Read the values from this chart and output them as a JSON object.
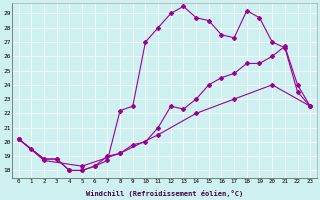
{
  "xlabel": "Windchill (Refroidissement éolien,°C)",
  "bg_color": "#cff0f0",
  "line_color": "#990099",
  "xlim": [
    -0.5,
    23.5
  ],
  "ylim": [
    17.5,
    29.7
  ],
  "yticks": [
    18,
    19,
    20,
    21,
    22,
    23,
    24,
    25,
    26,
    27,
    28,
    29
  ],
  "xticks": [
    0,
    1,
    2,
    3,
    4,
    5,
    6,
    7,
    8,
    9,
    10,
    11,
    12,
    13,
    14,
    15,
    16,
    17,
    18,
    19,
    20,
    21,
    22,
    23
  ],
  "line1_x": [
    0,
    1,
    2,
    3,
    4,
    5,
    6,
    7,
    8,
    9,
    10,
    11,
    12,
    13,
    14,
    15,
    16,
    17,
    18,
    19,
    20,
    21,
    22,
    23
  ],
  "line1_y": [
    20.2,
    19.5,
    18.8,
    18.8,
    18.0,
    18.0,
    18.3,
    18.7,
    22.2,
    22.5,
    27.0,
    28.0,
    29.0,
    29.5,
    28.7,
    28.5,
    27.5,
    27.3,
    29.2,
    28.7,
    27.0,
    26.6,
    23.5,
    22.5
  ],
  "line2_x": [
    0,
    2,
    3,
    4,
    5,
    6,
    7,
    8,
    9,
    10,
    11,
    12,
    13,
    14,
    15,
    16,
    17,
    18,
    19,
    20,
    21,
    22,
    23
  ],
  "line2_y": [
    20.2,
    18.8,
    18.8,
    18.0,
    18.0,
    18.3,
    19.0,
    19.2,
    19.8,
    20.0,
    21.0,
    22.5,
    22.3,
    23.0,
    24.0,
    24.5,
    24.8,
    25.5,
    25.5,
    26.0,
    26.7,
    24.0,
    22.5
  ],
  "line3_x": [
    0,
    2,
    5,
    8,
    11,
    14,
    17,
    20,
    23
  ],
  "line3_y": [
    20.2,
    18.7,
    18.3,
    19.2,
    20.5,
    22.0,
    23.0,
    24.0,
    22.5
  ]
}
